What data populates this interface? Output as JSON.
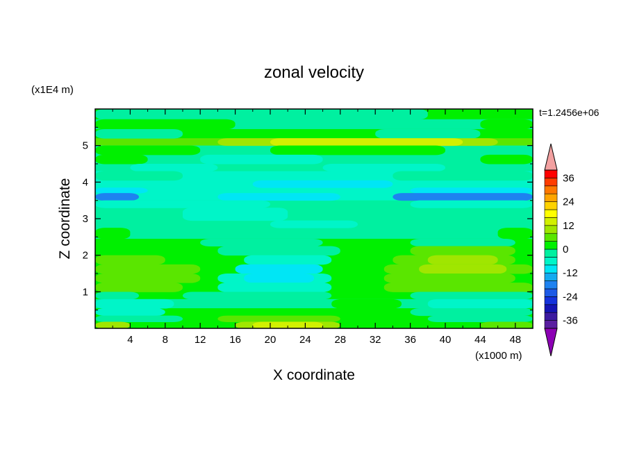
{
  "chart_data": {
    "type": "heatmap",
    "title": "zonal velocity",
    "xlabel": "X coordinate",
    "ylabel": "Z coordinate",
    "x_units": "(x1000 m)",
    "y_units": "(x1E4 m)",
    "time_label": "t=1.2456e+06",
    "xlim": [
      0,
      50
    ],
    "ylim": [
      0,
      6
    ],
    "x_ticks": [
      4,
      8,
      12,
      16,
      20,
      24,
      28,
      32,
      36,
      40,
      44,
      48
    ],
    "y_ticks": [
      1,
      2,
      3,
      4,
      5
    ],
    "colorbar": {
      "levels": [
        -40,
        -36,
        -32,
        -28,
        -24,
        -20,
        -16,
        -12,
        -8,
        -4,
        0,
        4,
        8,
        12,
        16,
        20,
        24,
        28,
        32,
        36,
        40
      ],
      "tick_labels": [
        "36",
        "24",
        "12",
        "0",
        "-12",
        "-24",
        "-36"
      ],
      "tick_values": [
        36,
        24,
        12,
        0,
        -12,
        -24,
        -36
      ],
      "colors": [
        "#5a1ea0",
        "#3c1aa0",
        "#1414b4",
        "#1432dc",
        "#1c5ae6",
        "#1e82f0",
        "#14aaf0",
        "#00e6f5",
        "#00f5c8",
        "#00f0a0",
        "#00f000",
        "#5ae600",
        "#a0e600",
        "#d2f000",
        "#ffff00",
        "#ffd200",
        "#ffa500",
        "#ff7800",
        "#ff3c00",
        "#ff0000"
      ],
      "over_color": "#f2a0a0",
      "under_color": "#8c00b4"
    },
    "bands": [
      {
        "z0": 5.72,
        "z1": 6.0,
        "base": 2,
        "patches": [
          {
            "x0": 0,
            "x1": 38,
            "v": 1
          }
        ]
      },
      {
        "z0": 5.45,
        "z1": 5.72,
        "base": 1,
        "patches": [
          {
            "x0": 0,
            "x1": 16,
            "v": 2
          },
          {
            "x0": 44,
            "x1": 50,
            "v": 2
          }
        ]
      },
      {
        "z0": 5.2,
        "z1": 5.45,
        "base": 2,
        "patches": [
          {
            "x0": 0,
            "x1": 10,
            "v": 1
          },
          {
            "x0": 32,
            "x1": 44,
            "v": 1
          }
        ]
      },
      {
        "z0": 5.0,
        "z1": 5.2,
        "base": 3,
        "patches": [
          {
            "x0": 14,
            "x1": 46,
            "v": 4
          },
          {
            "x0": 20,
            "x1": 42,
            "v": 5
          }
        ]
      },
      {
        "z0": 4.75,
        "z1": 5.0,
        "base": 1,
        "patches": [
          {
            "x0": 0,
            "x1": 12,
            "v": 2
          },
          {
            "x0": 20,
            "x1": 40,
            "v": 2
          }
        ]
      },
      {
        "z0": 4.5,
        "z1": 4.75,
        "base": 1,
        "patches": [
          {
            "x0": 0,
            "x1": 6,
            "v": 2
          },
          {
            "x0": 12,
            "x1": 26,
            "v": 0
          },
          {
            "x0": 44,
            "x1": 50,
            "v": 2
          }
        ]
      },
      {
        "z0": 4.3,
        "z1": 4.5,
        "base": 1,
        "patches": [
          {
            "x0": 4,
            "x1": 14,
            "v": 0
          },
          {
            "x0": 26,
            "x1": 40,
            "v": 0
          }
        ]
      },
      {
        "z0": 4.05,
        "z1": 4.3,
        "base": 0,
        "patches": [
          {
            "x0": 0,
            "x1": 10,
            "v": 1
          },
          {
            "x0": 34,
            "x1": 50,
            "v": 1
          }
        ]
      },
      {
        "z0": 3.85,
        "z1": 4.05,
        "base": 0,
        "patches": [
          {
            "x0": 18,
            "x1": 34,
            "v": -1
          }
        ]
      },
      {
        "z0": 3.7,
        "z1": 3.85,
        "base": 0,
        "patches": [
          {
            "x0": 0,
            "x1": 6,
            "v": -1
          },
          {
            "x0": 36,
            "x1": 50,
            "v": -1
          }
        ]
      },
      {
        "z0": 3.5,
        "z1": 3.7,
        "base": 0,
        "patches": [
          {
            "x0": 0,
            "x1": 5,
            "v": -2
          },
          {
            "x0": 34,
            "x1": 50,
            "v": -2
          },
          {
            "x0": 14,
            "x1": 28,
            "v": -1
          }
        ]
      },
      {
        "z0": 3.3,
        "z1": 3.5,
        "base": 1,
        "patches": [
          {
            "x0": 0,
            "x1": 20,
            "v": 0
          },
          {
            "x0": 36,
            "x1": 50,
            "v": 0
          }
        ]
      },
      {
        "z0": 2.95,
        "z1": 3.3,
        "base": 1,
        "patches": [
          {
            "x0": 10,
            "x1": 22,
            "v": 0
          }
        ]
      },
      {
        "z0": 2.75,
        "z1": 2.95,
        "base": 1,
        "patches": [
          {
            "x0": 20,
            "x1": 30,
            "v": 0
          }
        ]
      },
      {
        "z0": 2.45,
        "z1": 2.75,
        "base": 1,
        "patches": [
          {
            "x0": 0,
            "x1": 4,
            "v": 2
          },
          {
            "x0": 46,
            "x1": 50,
            "v": 2
          }
        ]
      },
      {
        "z0": 2.25,
        "z1": 2.45,
        "base": 2,
        "patches": [
          {
            "x0": 12,
            "x1": 26,
            "v": 1
          },
          {
            "x0": 36,
            "x1": 48,
            "v": 1
          }
        ]
      },
      {
        "z0": 2.0,
        "z1": 2.25,
        "base": 2,
        "patches": [
          {
            "x0": 14,
            "x1": 28,
            "v": 1
          },
          {
            "x0": 36,
            "x1": 48,
            "v": 3
          }
        ]
      },
      {
        "z0": 1.75,
        "z1": 2.0,
        "base": 2,
        "patches": [
          {
            "x0": 0,
            "x1": 8,
            "v": 3
          },
          {
            "x0": 17,
            "x1": 27,
            "v": 0
          },
          {
            "x0": 34,
            "x1": 48,
            "v": 3
          },
          {
            "x0": 38,
            "x1": 46,
            "v": 4
          }
        ]
      },
      {
        "z0": 1.5,
        "z1": 1.75,
        "base": 2,
        "patches": [
          {
            "x0": 0,
            "x1": 12,
            "v": 3
          },
          {
            "x0": 16,
            "x1": 26,
            "v": -1
          },
          {
            "x0": 33,
            "x1": 50,
            "v": 3
          },
          {
            "x0": 37,
            "x1": 47,
            "v": 4
          }
        ]
      },
      {
        "z0": 1.25,
        "z1": 1.5,
        "base": 2,
        "patches": [
          {
            "x0": 0,
            "x1": 12,
            "v": 3
          },
          {
            "x0": 14,
            "x1": 27,
            "v": 0
          },
          {
            "x0": 17,
            "x1": 25,
            "v": -1
          },
          {
            "x0": 33,
            "x1": 48,
            "v": 3
          }
        ]
      },
      {
        "z0": 1.0,
        "z1": 1.25,
        "base": 2,
        "patches": [
          {
            "x0": 0,
            "x1": 10,
            "v": 3
          },
          {
            "x0": 14,
            "x1": 27,
            "v": 0
          },
          {
            "x0": 33,
            "x1": 50,
            "v": 3
          }
        ]
      },
      {
        "z0": 0.8,
        "z1": 1.0,
        "base": 2,
        "patches": [
          {
            "x0": 0,
            "x1": 5,
            "v": 1
          },
          {
            "x0": 10,
            "x1": 27,
            "v": 1
          },
          {
            "x0": 36,
            "x1": 50,
            "v": 1
          }
        ]
      },
      {
        "z0": 0.55,
        "z1": 0.8,
        "base": 1,
        "patches": [
          {
            "x0": 0,
            "x1": 9,
            "v": 0
          },
          {
            "x0": 27,
            "x1": 35,
            "v": 2
          },
          {
            "x0": 38,
            "x1": 50,
            "v": 0
          }
        ]
      },
      {
        "z0": 0.35,
        "z1": 0.55,
        "base": 2,
        "patches": [
          {
            "x0": 0,
            "x1": 8,
            "v": 0
          },
          {
            "x0": 36,
            "x1": 50,
            "v": 1
          }
        ]
      },
      {
        "z0": 0.18,
        "z1": 0.35,
        "base": 2,
        "patches": [
          {
            "x0": 0,
            "x1": 10,
            "v": 1
          },
          {
            "x0": 14,
            "x1": 28,
            "v": 3
          },
          {
            "x0": 38,
            "x1": 50,
            "v": 1
          }
        ]
      },
      {
        "z0": 0.0,
        "z1": 0.18,
        "base": 2,
        "patches": [
          {
            "x0": 0,
            "x1": 4,
            "v": 4
          },
          {
            "x0": 16,
            "x1": 28,
            "v": 4
          },
          {
            "x0": 18,
            "x1": 26,
            "v": 5
          },
          {
            "x0": 44,
            "x1": 50,
            "v": 3
          }
        ]
      }
    ],
    "value_classes": {
      "-2": "#1e82f0",
      "-1": "#00e6f5",
      "0": "#00f5c8",
      "1": "#00f0a0",
      "2": "#00f000",
      "3": "#5ae600",
      "4": "#a0e600",
      "5": "#d2f000"
    }
  }
}
